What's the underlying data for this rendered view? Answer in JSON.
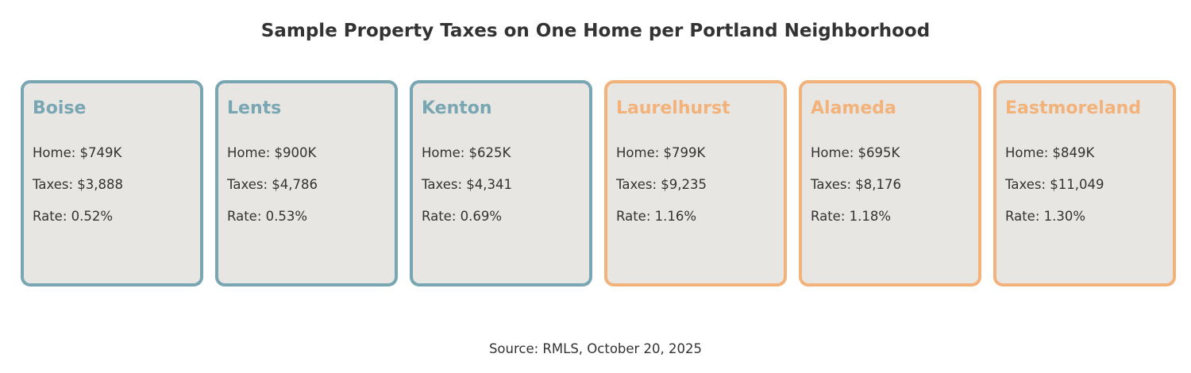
{
  "chart_data": {
    "type": "table",
    "title": "Sample Property Taxes on One Home per Portland Neighborhood",
    "source": "Source: RMLS, October 20, 2025",
    "colors": {
      "group_low": "#78a6b2",
      "group_high": "#f2b27a",
      "card_background": "#e8e6e3",
      "text": "#333333"
    },
    "neighborhoods": [
      {
        "name": "Boise",
        "home": "Home: $749K",
        "taxes": "Taxes: $3,888",
        "rate": "Rate: 0.52%",
        "home_value_k": 749,
        "tax_value": 3888,
        "rate_pct": 0.52,
        "group": "low"
      },
      {
        "name": "Lents",
        "home": "Home: $900K",
        "taxes": "Taxes: $4,786",
        "rate": "Rate: 0.53%",
        "home_value_k": 900,
        "tax_value": 4786,
        "rate_pct": 0.53,
        "group": "low"
      },
      {
        "name": "Kenton",
        "home": "Home: $625K",
        "taxes": "Taxes: $4,341",
        "rate": "Rate: 0.69%",
        "home_value_k": 625,
        "tax_value": 4341,
        "rate_pct": 0.69,
        "group": "low"
      },
      {
        "name": "Laurelhurst",
        "home": "Home: $799K",
        "taxes": "Taxes: $9,235",
        "rate": "Rate: 1.16%",
        "home_value_k": 799,
        "tax_value": 9235,
        "rate_pct": 1.16,
        "group": "high"
      },
      {
        "name": "Alameda",
        "home": "Home: $695K",
        "taxes": "Taxes: $8,176",
        "rate": "Rate: 1.18%",
        "home_value_k": 695,
        "tax_value": 8176,
        "rate_pct": 1.18,
        "group": "high"
      },
      {
        "name": "Eastmoreland",
        "home": "Home: $849K",
        "taxes": "Taxes: $11,049",
        "rate": "Rate: 1.30%",
        "home_value_k": 849,
        "tax_value": 11049,
        "rate_pct": 1.3,
        "group": "high"
      }
    ]
  }
}
